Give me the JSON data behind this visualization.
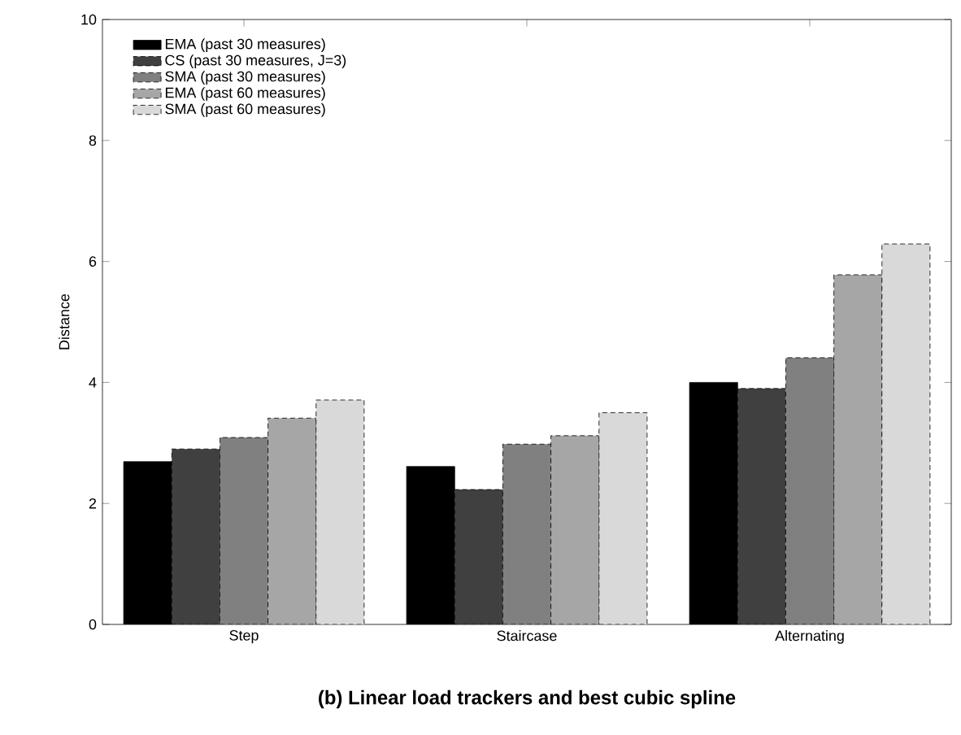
{
  "chart_data": {
    "type": "bar",
    "title": "(b) Linear load trackers and best cubic spline",
    "ylabel": "Distance",
    "categories": [
      "Step",
      "Staircase",
      "Alternating"
    ],
    "series": [
      {
        "name": "EMA (past 30 measures)",
        "color": "#000000",
        "values": [
          2.69,
          2.61,
          4.0
        ]
      },
      {
        "name": "CS (past 30 measures, J=3)",
        "color": "#404040",
        "values": [
          2.9,
          2.23,
          3.9
        ]
      },
      {
        "name": "SMA (past 30 measures)",
        "color": "#808080",
        "values": [
          3.09,
          2.98,
          4.41
        ]
      },
      {
        "name": "EMA (past 60 measures)",
        "color": "#a6a6a6",
        "values": [
          3.41,
          3.12,
          5.78
        ]
      },
      {
        "name": "SMA (past 60 measures)",
        "color": "#d9d9d9",
        "values": [
          3.71,
          3.5,
          6.29
        ]
      }
    ],
    "ylim": [
      0,
      10
    ],
    "yticks": [
      0,
      2,
      4,
      6,
      8,
      10
    ],
    "legend": "top left"
  }
}
